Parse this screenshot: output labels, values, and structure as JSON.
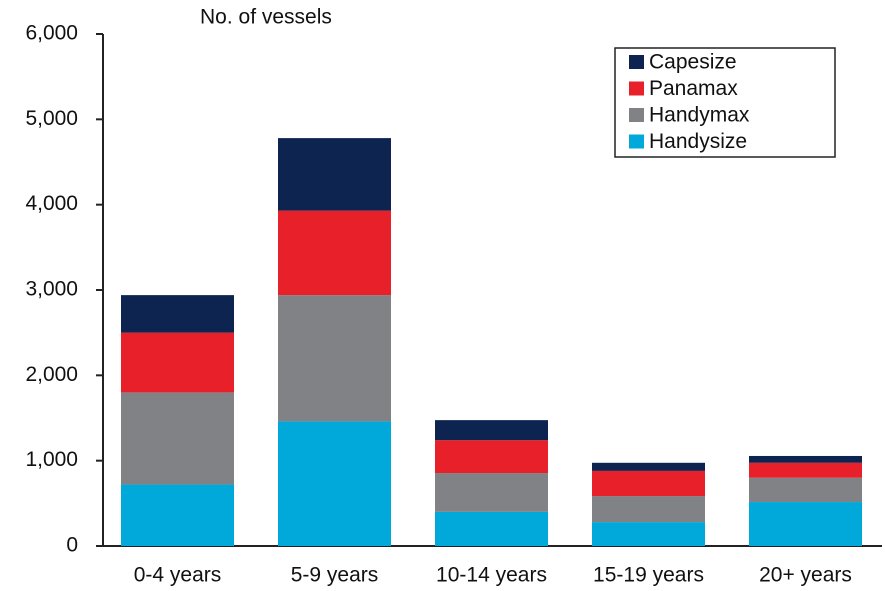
{
  "chart_data": {
    "type": "bar",
    "stacked": true,
    "y_axis_label": "No. of vessels",
    "categories": [
      "0-4 years",
      "5-9 years",
      "10-14 years",
      "15-19 years",
      "20+ years"
    ],
    "series": [
      {
        "name": "Handysize",
        "color": "#00a9d9",
        "values": [
          720,
          1460,
          400,
          280,
          515
        ]
      },
      {
        "name": "Handymax",
        "color": "#808285",
        "values": [
          1080,
          1480,
          455,
          305,
          285
        ]
      },
      {
        "name": "Panamax",
        "color": "#e8202a",
        "values": [
          700,
          990,
          385,
          295,
          175
        ]
      },
      {
        "name": "Capesize",
        "color": "#0d2451",
        "values": [
          440,
          850,
          235,
          95,
          80
        ]
      }
    ],
    "ylim": [
      0,
      6000
    ],
    "yticks": [
      0,
      {
        "value": 1000,
        "label": "1,000"
      },
      {
        "value": 2000,
        "label": "2,000"
      },
      {
        "value": 3000,
        "label": "3,000"
      },
      {
        "value": 4000,
        "label": "4,000"
      },
      {
        "value": 5000,
        "label": "5,000"
      },
      {
        "value": 6000,
        "label": "6,000"
      }
    ],
    "grid": false,
    "legend": "upper right"
  }
}
